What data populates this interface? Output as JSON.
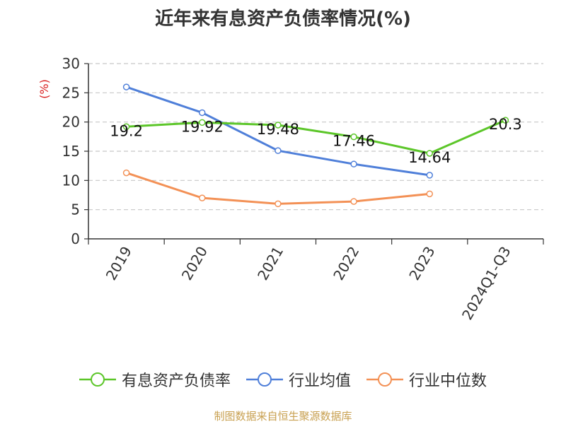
{
  "title": "近年来有息资产负债率情况(%)",
  "source": "制图数据来自恒生聚源数据库",
  "chart_data": {
    "type": "line",
    "title": "近年来有息资产负债率情况(%)",
    "ylabel": "(%)",
    "ylim": [
      0,
      30
    ],
    "yticks": [
      0,
      5,
      10,
      15,
      20,
      25,
      30
    ],
    "grid": true,
    "legend_position": "bottom",
    "categories": [
      "2019",
      "2020",
      "2021",
      "2022",
      "2023",
      "2024Q1-Q3"
    ],
    "series": [
      {
        "name": "有息资产负债率",
        "color": "#5cc629",
        "values": [
          19.2,
          19.92,
          19.48,
          17.46,
          14.64,
          20.3
        ],
        "labels": [
          "19.2",
          "19.92",
          "19.48",
          "17.46",
          "14.64",
          "20.3"
        ],
        "show_labels": true
      },
      {
        "name": "行业均值",
        "color": "#4f7fd9",
        "values": [
          26.0,
          21.6,
          15.1,
          12.8,
          10.9,
          null
        ],
        "show_labels": false
      },
      {
        "name": "行业中位数",
        "color": "#f39156",
        "values": [
          11.3,
          7.0,
          6.0,
          6.4,
          7.7,
          null
        ],
        "show_labels": false
      }
    ]
  }
}
